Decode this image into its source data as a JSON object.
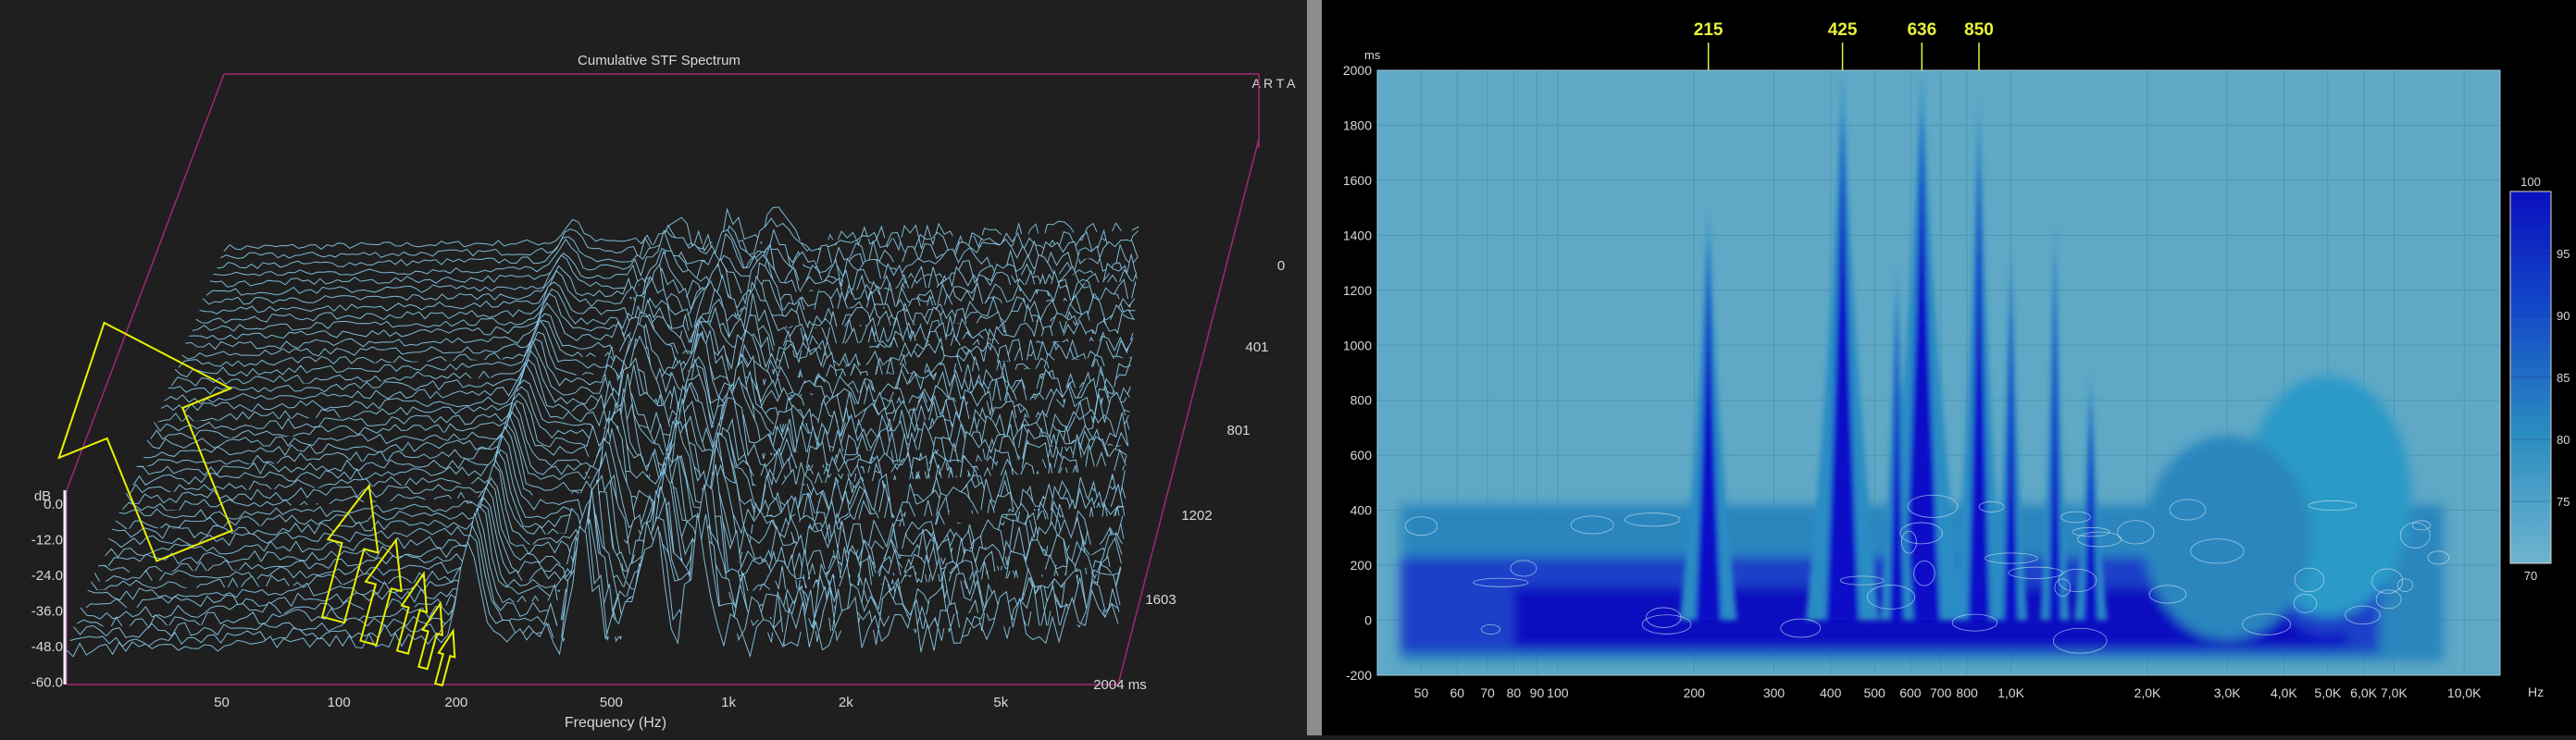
{
  "waterfall": {
    "title": "Cumulative STF Spectrum",
    "brand": "A R T A",
    "db_unit": "dB",
    "db_ticks": [
      "0.0",
      "-12.0",
      "-24.0",
      "-36.0",
      "-48.0",
      "-60.0"
    ],
    "right_scale_label": "0",
    "time_ticks": [
      "401",
      "801",
      "1202",
      "1603",
      "2004 ms"
    ],
    "freq_ticks": [
      "50",
      "100",
      "200",
      "500",
      "1k",
      "2k",
      "5k"
    ],
    "xlabel": "Frequency (Hz)",
    "colors": {
      "line": "#8fd3f4",
      "frame": "#a02878",
      "arrow": "#e8f000"
    }
  },
  "spectrogram": {
    "ylabel": "ms",
    "y_ticks": [
      "2000",
      "1800",
      "1600",
      "1400",
      "1200",
      "1000",
      "800",
      "600",
      "400",
      "200",
      "0",
      "-200"
    ],
    "x_ticks": [
      "50",
      "60",
      "70",
      "80",
      "90",
      "100",
      "200",
      "300",
      "400",
      "500",
      "600",
      "700",
      "800",
      "1,0K",
      "2,0K",
      "3,0K",
      "4,0K",
      "5,0K",
      "6,0K",
      "7,0K",
      "10,0K"
    ],
    "xlabel": "Hz",
    "peak_labels": [
      "215",
      "425",
      "636",
      "850"
    ],
    "colorbar_ticks": [
      "100",
      "95",
      "90",
      "85",
      "80",
      "75",
      "70"
    ],
    "colors": {
      "background": "#5fa8c6",
      "hot": "#0a10c8",
      "peak_label": "#e6f23a"
    }
  },
  "chart_data": [
    {
      "type": "area",
      "title": "Cumulative STF Spectrum",
      "xlabel": "Frequency (Hz)",
      "ylabel": "dB",
      "x_scale": "log",
      "xlim": [
        20,
        10000
      ],
      "ylim": [
        -60,
        0
      ],
      "zlim_ms": [
        0,
        2004
      ],
      "notes_visible_peaks_hz": [
        215,
        425,
        636,
        850
      ]
    },
    {
      "type": "heatmap",
      "xlabel": "Hz",
      "ylabel": "ms",
      "x_scale": "log",
      "xlim": [
        40,
        12000
      ],
      "ylim": [
        -200,
        2000
      ],
      "colorbar_range": [
        70,
        100
      ],
      "peaks": [
        {
          "freq_hz": 215,
          "decay_ms": 1500
        },
        {
          "freq_hz": 425,
          "decay_ms": 2000
        },
        {
          "freq_hz": 636,
          "decay_ms": 2000
        },
        {
          "freq_hz": 850,
          "decay_ms": 1900
        }
      ]
    }
  ]
}
